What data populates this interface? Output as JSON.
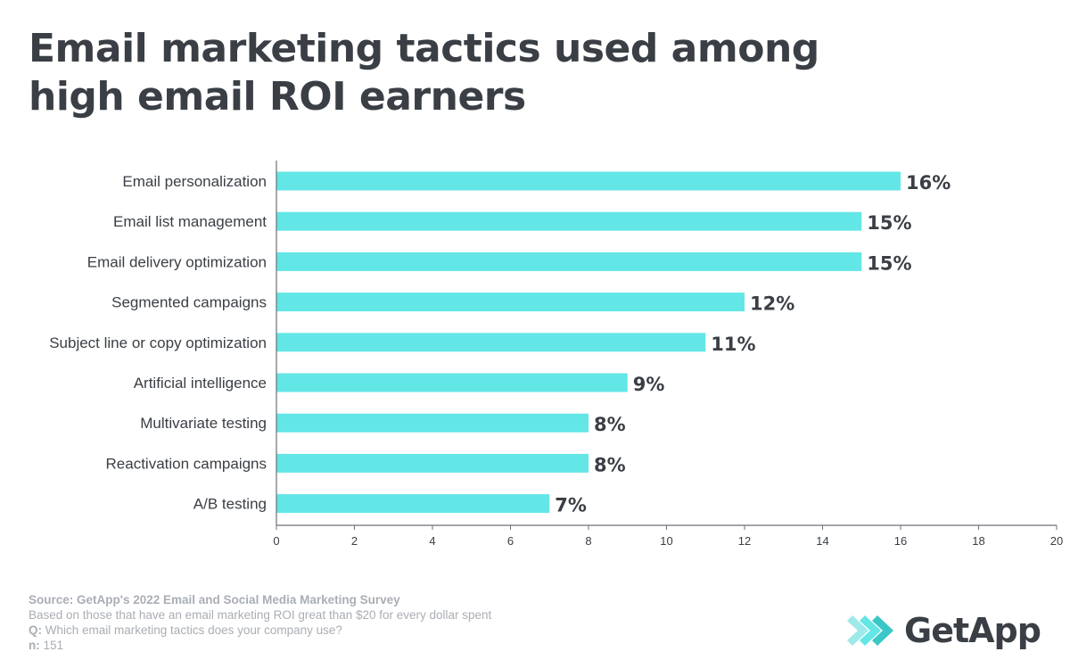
{
  "title": "Email marketing tactics used among high email ROI earners",
  "chart_data": {
    "type": "bar",
    "orientation": "horizontal",
    "categories": [
      "Email personalization",
      "Email list management",
      "Email delivery optimization",
      "Segmented campaigns",
      "Subject line or copy optimization",
      "Artificial intelligence",
      "Multivariate testing",
      "Reactivation campaigns",
      "A/B testing"
    ],
    "values": [
      16,
      15,
      15,
      12,
      11,
      9,
      8,
      8,
      7
    ],
    "value_labels": [
      "16%",
      "15%",
      "15%",
      "12%",
      "11%",
      "9%",
      "8%",
      "8%",
      "7%"
    ],
    "xlim": [
      0,
      20
    ],
    "xticks": [
      0,
      2,
      4,
      6,
      8,
      10,
      12,
      14,
      16,
      18,
      20
    ],
    "grid": false,
    "bar_color": "#63e6e6",
    "text_color": "#3a3f45"
  },
  "footer": {
    "source_label": "Source:",
    "source_text": "GetApp's 2022 Email and Social Media Marketing Survey",
    "note": "Based on those that have an email marketing ROI great than $20 for every dollar spent",
    "q_label": "Q:",
    "q_text": "Which email marketing tactics does your company use?",
    "n_label": "n:",
    "n_text": "151"
  },
  "logo": {
    "text": "GetApp",
    "icon": "getapp-chevrons-icon"
  }
}
